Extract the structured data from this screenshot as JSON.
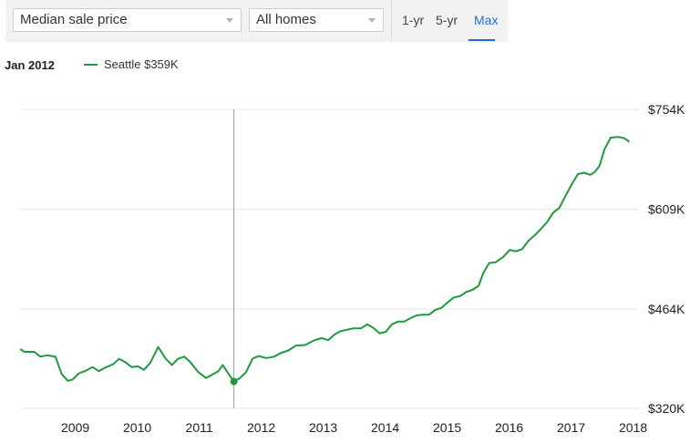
{
  "toolbar": {
    "metric_select": "Median sale price",
    "homes_select": "All homes",
    "ranges": [
      "1-yr",
      "5-yr",
      "Max"
    ],
    "active_range": "Max"
  },
  "legend": {
    "date": "Jan 2012",
    "series_label": "Seattle $359K"
  },
  "colors": {
    "line": "#1e9a3c",
    "accent": "#1e6fd9"
  },
  "chart_data": {
    "type": "line",
    "x_tick_labels": [
      "2009",
      "2010",
      "2011",
      "2012",
      "2013",
      "2014",
      "2015",
      "2016",
      "2017",
      "2018"
    ],
    "y_tick_labels": [
      "$754K",
      "$609K",
      "$464K",
      "$320K"
    ],
    "y_ticks": [
      754,
      609,
      464,
      320
    ],
    "ylim": [
      320,
      754
    ],
    "xlim": [
      2008.55,
      2018.75
    ],
    "grid": true,
    "legend_position": "top-left",
    "hover": {
      "x": 2012.0,
      "y": 359,
      "label": "Jan 2012"
    },
    "series": [
      {
        "name": "Seattle",
        "points": [
          [
            2008.55,
            406
          ],
          [
            2008.62,
            402
          ],
          [
            2008.78,
            402
          ],
          [
            2008.88,
            395
          ],
          [
            2008.98,
            397
          ],
          [
            2009.12,
            395
          ],
          [
            2009.22,
            370
          ],
          [
            2009.32,
            360
          ],
          [
            2009.4,
            362
          ],
          [
            2009.5,
            371
          ],
          [
            2009.62,
            375
          ],
          [
            2009.72,
            380
          ],
          [
            2009.82,
            374
          ],
          [
            2009.92,
            379
          ],
          [
            2010.05,
            384
          ],
          [
            2010.15,
            392
          ],
          [
            2010.25,
            387
          ],
          [
            2010.35,
            380
          ],
          [
            2010.45,
            381
          ],
          [
            2010.55,
            376
          ],
          [
            2010.65,
            386
          ],
          [
            2010.78,
            409
          ],
          [
            2010.9,
            392
          ],
          [
            2011.0,
            383
          ],
          [
            2011.1,
            392
          ],
          [
            2011.2,
            395
          ],
          [
            2011.3,
            387
          ],
          [
            2011.42,
            373
          ],
          [
            2011.55,
            364
          ],
          [
            2011.65,
            369
          ],
          [
            2011.75,
            374
          ],
          [
            2011.82,
            383
          ],
          [
            2011.9,
            372
          ],
          [
            2012.0,
            359
          ],
          [
            2012.1,
            364
          ],
          [
            2012.2,
            373
          ],
          [
            2012.3,
            392
          ],
          [
            2012.4,
            396
          ],
          [
            2012.52,
            393
          ],
          [
            2012.65,
            395
          ],
          [
            2012.75,
            400
          ],
          [
            2012.88,
            404
          ],
          [
            2013.0,
            411
          ],
          [
            2013.15,
            412
          ],
          [
            2013.3,
            419
          ],
          [
            2013.42,
            422
          ],
          [
            2013.52,
            419
          ],
          [
            2013.62,
            427
          ],
          [
            2013.72,
            432
          ],
          [
            2013.82,
            434
          ],
          [
            2013.92,
            436
          ],
          [
            2014.05,
            436
          ],
          [
            2014.15,
            442
          ],
          [
            2014.25,
            437
          ],
          [
            2014.35,
            429
          ],
          [
            2014.45,
            431
          ],
          [
            2014.55,
            442
          ],
          [
            2014.65,
            446
          ],
          [
            2014.75,
            446
          ],
          [
            2014.85,
            451
          ],
          [
            2014.95,
            455
          ],
          [
            2015.05,
            456
          ],
          [
            2015.15,
            456
          ],
          [
            2015.25,
            463
          ],
          [
            2015.35,
            466
          ],
          [
            2015.45,
            474
          ],
          [
            2015.55,
            481
          ],
          [
            2015.65,
            483
          ],
          [
            2015.75,
            489
          ],
          [
            2015.85,
            492
          ],
          [
            2015.95,
            498
          ],
          [
            2016.02,
            516
          ],
          [
            2016.12,
            531
          ],
          [
            2016.22,
            532
          ],
          [
            2016.35,
            540
          ],
          [
            2016.45,
            550
          ],
          [
            2016.55,
            548
          ],
          [
            2016.65,
            551
          ],
          [
            2016.75,
            563
          ],
          [
            2016.85,
            571
          ],
          [
            2016.95,
            580
          ],
          [
            2017.05,
            590
          ],
          [
            2017.15,
            604
          ],
          [
            2017.25,
            611
          ],
          [
            2017.35,
            628
          ],
          [
            2017.45,
            645
          ],
          [
            2017.55,
            660
          ],
          [
            2017.65,
            662
          ],
          [
            2017.75,
            659
          ],
          [
            2017.82,
            663
          ],
          [
            2017.9,
            672
          ],
          [
            2017.98,
            696
          ],
          [
            2018.08,
            713
          ],
          [
            2018.2,
            714
          ],
          [
            2018.3,
            712
          ],
          [
            2018.38,
            707
          ]
        ]
      }
    ]
  }
}
